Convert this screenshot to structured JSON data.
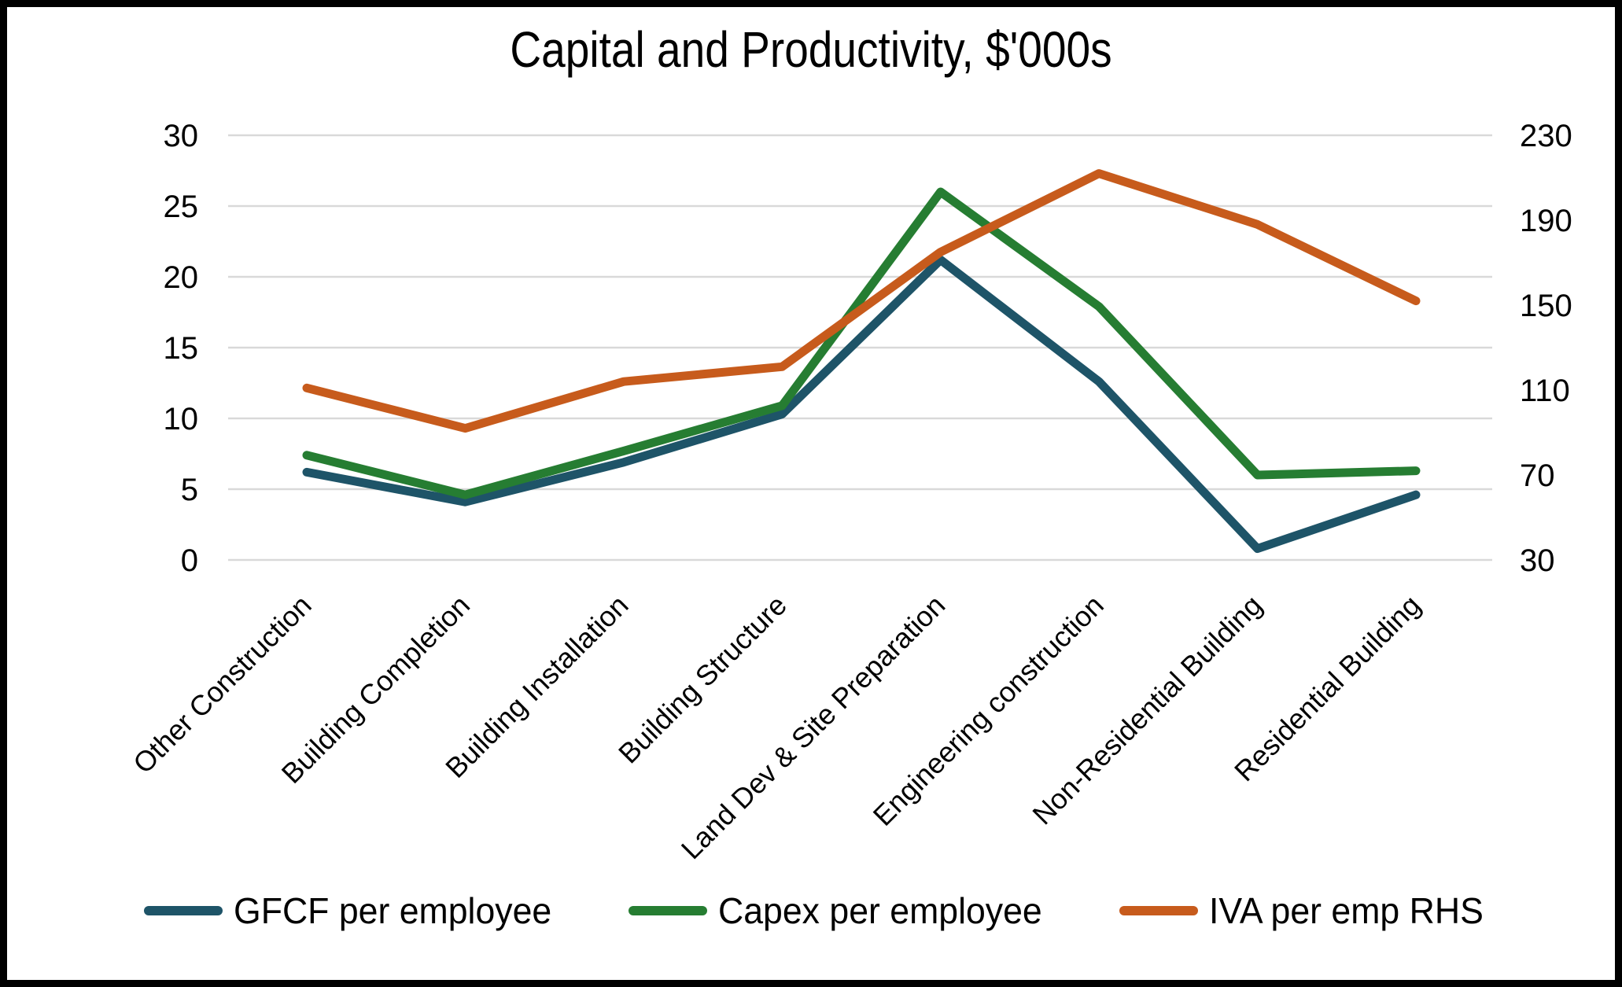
{
  "chart_data": {
    "type": "line",
    "title": "Capital and Productivity, $'000s",
    "categories": [
      "Other Construction",
      "Building Completion",
      "Building Installation",
      "Building Structure",
      "Land Dev & Site Preparation",
      "Engineering construction",
      "Non-Residential Building",
      "Residential Building"
    ],
    "series": [
      {
        "name": "GFCF per employee",
        "axis": "left",
        "color": "#1E5468",
        "values": [
          6.2,
          4.1,
          6.9,
          10.3,
          21.2,
          12.6,
          0.8,
          4.6
        ]
      },
      {
        "name": "Capex per employee",
        "axis": "left",
        "color": "#267D32",
        "values": [
          7.4,
          4.6,
          7.7,
          10.9,
          26.0,
          17.9,
          6.0,
          6.3
        ]
      },
      {
        "name": "IVA per emp RHS",
        "axis": "right",
        "color": "#C75B1C",
        "values": [
          111,
          92,
          114,
          121,
          175,
          212,
          188,
          152
        ]
      }
    ],
    "left_axis": {
      "min": 0,
      "max": 30,
      "ticks": [
        0,
        5,
        10,
        15,
        20,
        25,
        30
      ]
    },
    "right_axis": {
      "min": 30,
      "max": 230,
      "ticks": [
        30,
        70,
        110,
        150,
        190,
        230
      ]
    },
    "grid": true,
    "gridline_color": "#D9D9D9",
    "legend_position": "bottom"
  }
}
